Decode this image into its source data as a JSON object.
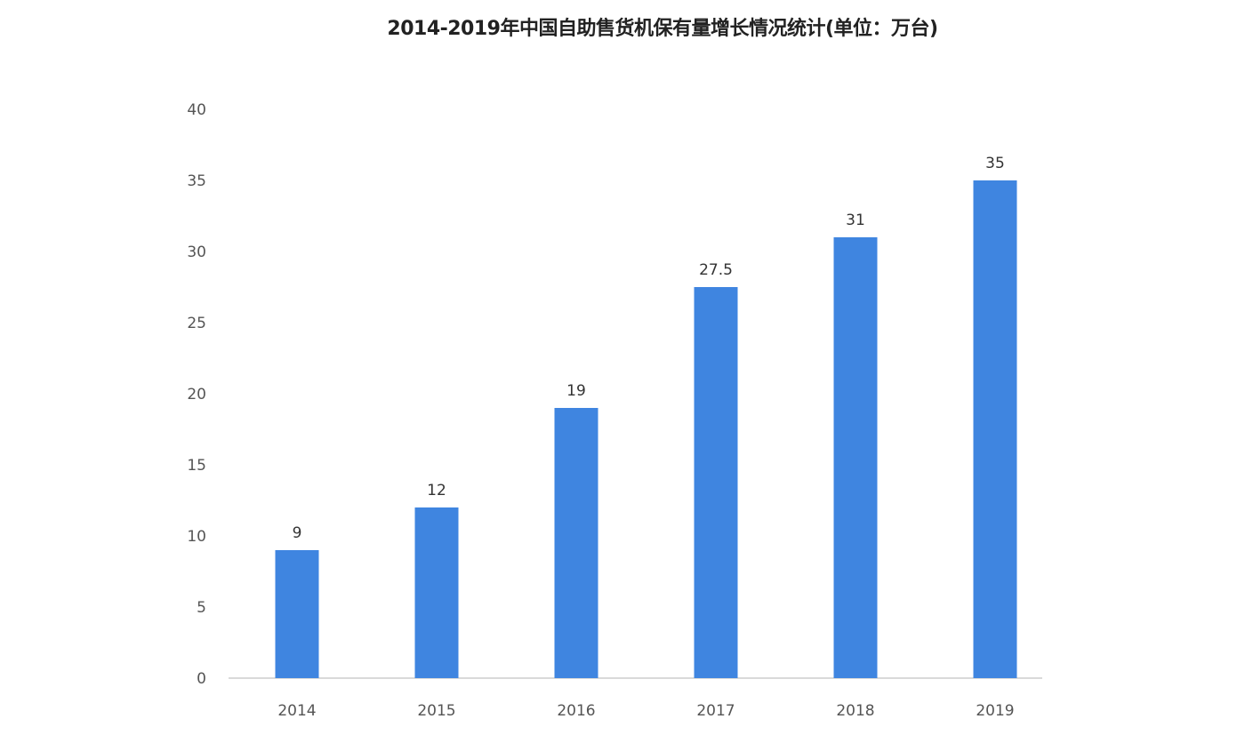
{
  "chart_data": {
    "type": "bar",
    "title": "2014-2019年中国自助售货机保有量增长情况统计(单位：万台)",
    "categories": [
      "2014",
      "2015",
      "2016",
      "2017",
      "2018",
      "2019"
    ],
    "values": [
      9,
      12,
      19,
      27.5,
      31,
      35
    ],
    "data_labels": [
      "9",
      "12",
      "19",
      "27.5",
      "31",
      "35"
    ],
    "xlabel": "",
    "ylabel": "",
    "ylim": [
      0,
      40
    ],
    "yticks": [
      0,
      5,
      10,
      15,
      20,
      25,
      30,
      35,
      40
    ],
    "grid": false,
    "legend": "none",
    "bar_color": "#3f85e0"
  }
}
